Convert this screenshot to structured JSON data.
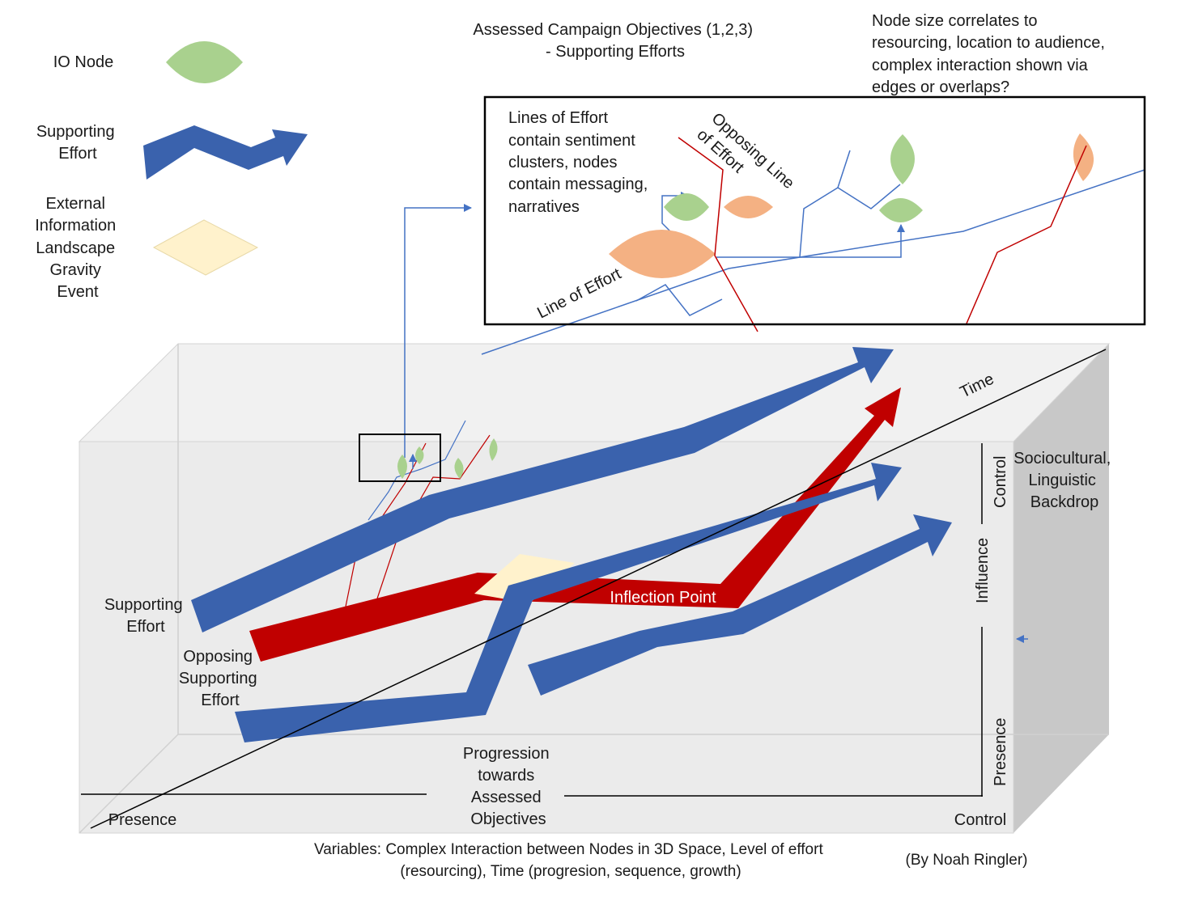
{
  "legend": {
    "io_node": "IO Node",
    "supporting_effort": [
      "Supporting",
      "Effort"
    ],
    "external_event": [
      "External",
      "Information",
      "Landscape",
      "Gravity",
      "Event"
    ]
  },
  "header": {
    "objectives": [
      "Assessed Campaign Objectives (1,2,3)",
      "- Supporting Efforts"
    ],
    "node_note": [
      "Node size correlates to",
      "resourcing, location to audience,",
      "complex interaction shown via",
      "edges or overlaps?"
    ]
  },
  "inset": {
    "description": [
      "Lines of Effort",
      "contain sentiment",
      "clusters, nodes",
      "contain messaging,",
      "narratives"
    ],
    "opposing_line": [
      "Opposing Line",
      "of Effort"
    ],
    "line_of_effort": "Line of Effort"
  },
  "diagram": {
    "time": "Time",
    "backdrop": [
      "Sociocultural,",
      "Linguistic",
      "Backdrop"
    ],
    "axis_control": "Control",
    "axis_influence": "Influence",
    "axis_presence": "Presence",
    "supporting_effort": [
      "Supporting",
      "Effort"
    ],
    "opposing_supporting_effort": [
      "Opposing",
      "Supporting",
      "Effort"
    ],
    "inflection_point": "Inflection Point",
    "progression": [
      "Progression",
      "towards",
      "Assessed",
      "Objectives"
    ],
    "presence_bottom": "Presence",
    "control_bottom": "Control"
  },
  "footer": {
    "variables": [
      "Variables: Complex Interaction between Nodes in 3D Space, Level of effort",
      "(resourcing), Time (progresion, sequence, growth)"
    ],
    "author": "(By Noah Ringler)"
  },
  "colors": {
    "supporting_blue": "#3a62ad",
    "opposing_red": "#c00000",
    "io_green": "#a9d18e",
    "node_orange": "#f4b183",
    "event_yellow": "#fff2cc",
    "thin_blue": "#4472c4",
    "thin_red": "#c00000",
    "box_face": "#ebebeb",
    "box_side": "#c8c8c8"
  }
}
